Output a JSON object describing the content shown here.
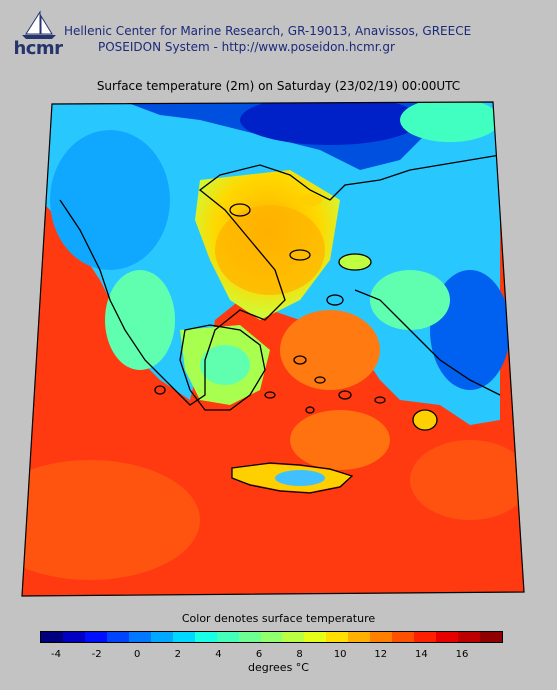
{
  "header": {
    "logo_text": "hcmr",
    "org_line": "Hellenic Center for Marine Research, GR-19013, Anavissos, GREECE",
    "system_line": "POSEIDON System - http://www.poseidon.hcmr.gr"
  },
  "map": {
    "title": "Surface temperature (2m) on Saturday (23/02/19) 00:00UTC",
    "coastline_color": "#000000",
    "sea_color": "#ff3a10",
    "land_colors": [
      "#00b4ff",
      "#40ffc0",
      "#c0ff40",
      "#ffd000",
      "#ff9a00"
    ],
    "cold_color": "#0020c8"
  },
  "colorbar": {
    "caption": "Color denotes surface temperature",
    "unit_label": "degrees °C",
    "ticks": [
      "-4",
      "-2",
      "0",
      "2",
      "4",
      "6",
      "8",
      "10",
      "12",
      "14",
      "16"
    ],
    "colors": [
      "#00007f",
      "#0000c4",
      "#0010ff",
      "#0044ff",
      "#0078ff",
      "#00a8ff",
      "#00d8ff",
      "#18ffe6",
      "#44ffba",
      "#6cff92",
      "#92ff6c",
      "#baff44",
      "#e6ff18",
      "#ffe000",
      "#ffb000",
      "#ff8000",
      "#ff5000",
      "#ff2000",
      "#e80000",
      "#bc0000",
      "#900000"
    ]
  }
}
